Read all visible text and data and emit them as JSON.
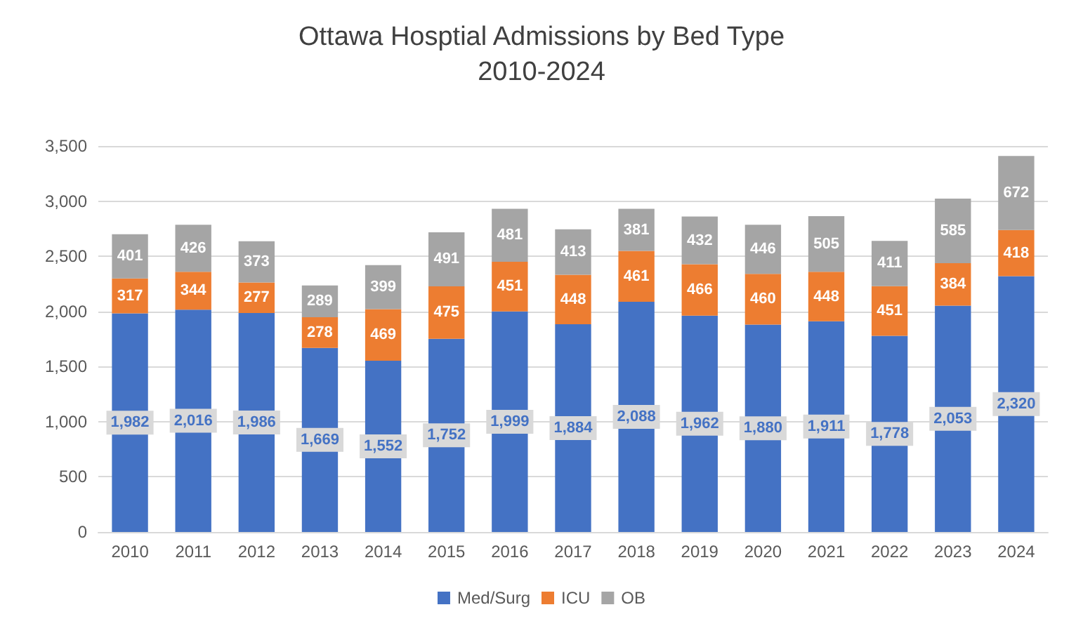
{
  "chart_data": {
    "type": "bar",
    "title": "Ottawa Hosptial Admissions by Bed Type",
    "subtitle": "2010-2024",
    "categories": [
      "2010",
      "2011",
      "2012",
      "2013",
      "2014",
      "2015",
      "2016",
      "2017",
      "2018",
      "2019",
      "2020",
      "2021",
      "2022",
      "2023",
      "2024"
    ],
    "stacked": true,
    "series": [
      {
        "name": "Med/Surg",
        "color": "#4472c4",
        "values": [
          1982,
          2016,
          1986,
          1669,
          1552,
          1752,
          1999,
          1884,
          2088,
          1962,
          1880,
          1911,
          1778,
          2053,
          2320
        ],
        "value_labels": [
          "1,982",
          "2,016",
          "1,986",
          "1,669",
          "1,552",
          "1,752",
          "1,999",
          "1,884",
          "2,088",
          "1,962",
          "1,880",
          "1,911",
          "1,778",
          "2,053",
          "2,320"
        ]
      },
      {
        "name": "ICU",
        "color": "#ed7d31",
        "values": [
          317,
          344,
          277,
          278,
          469,
          475,
          451,
          448,
          461,
          466,
          460,
          448,
          451,
          384,
          418
        ]
      },
      {
        "name": "OB",
        "color": "#a5a5a5",
        "values": [
          401,
          426,
          373,
          289,
          399,
          491,
          481,
          413,
          381,
          432,
          446,
          505,
          411,
          585,
          672
        ]
      }
    ],
    "ylim": [
      0,
      3500
    ],
    "yticks": [
      {
        "value": 0,
        "label": "0"
      },
      {
        "value": 500,
        "label": "500"
      },
      {
        "value": 1000,
        "label": "1,000"
      },
      {
        "value": 1500,
        "label": "1,500"
      },
      {
        "value": 2000,
        "label": "2,000"
      },
      {
        "value": 2500,
        "label": "2,500"
      },
      {
        "value": 3000,
        "label": "3,000"
      },
      {
        "value": 3500,
        "label": "3,500"
      }
    ],
    "grid": "y",
    "legend": "bottom",
    "data_labels": true
  }
}
